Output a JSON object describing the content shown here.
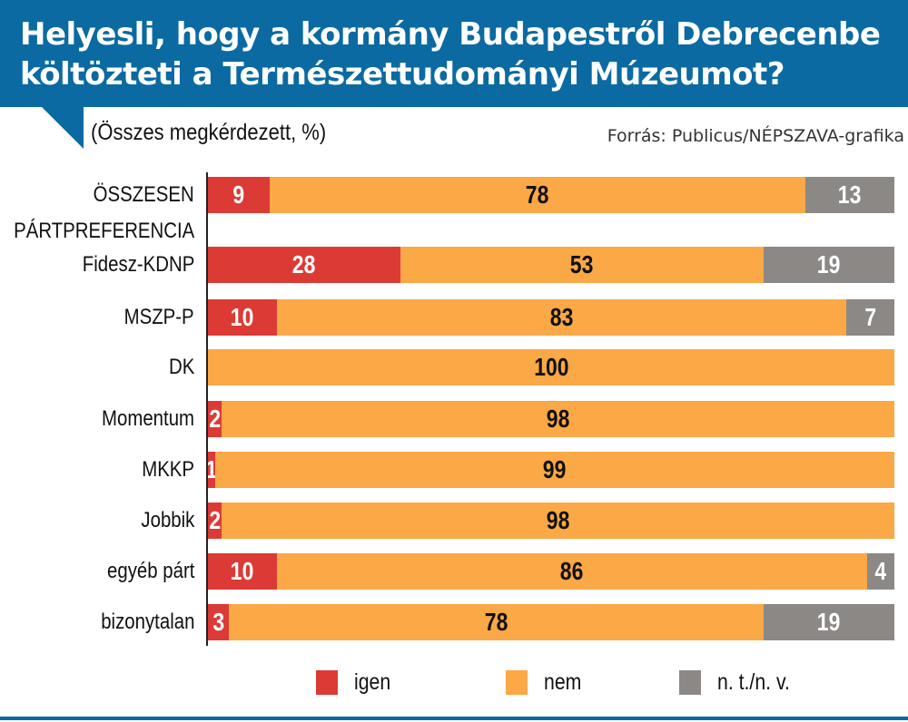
{
  "header": {
    "title_line1": "Helyesli, hogy a kormány Budapestről Debrecenbe",
    "title_line2": "költözteti a Természettudományi Múzeumot?",
    "subtitle": "(Összes megkérdezett, %)",
    "source": "Forrás: Publicus/NÉPSZAVA-grafika"
  },
  "colors": {
    "header_bg": "#0b6aa2",
    "igen": "#dc3a35",
    "nem": "#fba846",
    "ntnv": "#8c8885"
  },
  "chart_data": {
    "type": "bar",
    "orientation": "horizontal",
    "stacked": true,
    "title": "Helyesli, hogy a kormány Budapestről Debrecenbe költözteti a Természettudományi Múzeumot?",
    "subtitle": "(Összes megkérdezett, %)",
    "xlabel": "",
    "ylabel": "",
    "xlim": [
      0,
      100
    ],
    "grid": false,
    "legend_position": "bottom",
    "group_label": "PÁRTPREFERENCIA",
    "categories": [
      "ÖSSZESEN",
      "Fidesz-KDNP",
      "MSZP-P",
      "DK",
      "Momentum",
      "MKKP",
      "Jobbik",
      "egyéb párt",
      "bizonytalan"
    ],
    "series": [
      {
        "name": "igen",
        "color": "#dc3a35",
        "values": [
          9,
          28,
          10,
          0,
          2,
          1,
          2,
          10,
          3
        ]
      },
      {
        "name": "nem",
        "color": "#fba846",
        "values": [
          78,
          53,
          83,
          100,
          98,
          99,
          98,
          86,
          78
        ]
      },
      {
        "name": "n. t./n. v.",
        "color": "#8c8885",
        "values": [
          13,
          19,
          7,
          0,
          0,
          0,
          0,
          4,
          19
        ]
      }
    ]
  },
  "legend": {
    "items": [
      {
        "label": "igen",
        "color": "#dc3a35"
      },
      {
        "label": "nem",
        "color": "#fba846"
      },
      {
        "label": "n. t./n. v.",
        "color": "#8c8885"
      }
    ]
  }
}
